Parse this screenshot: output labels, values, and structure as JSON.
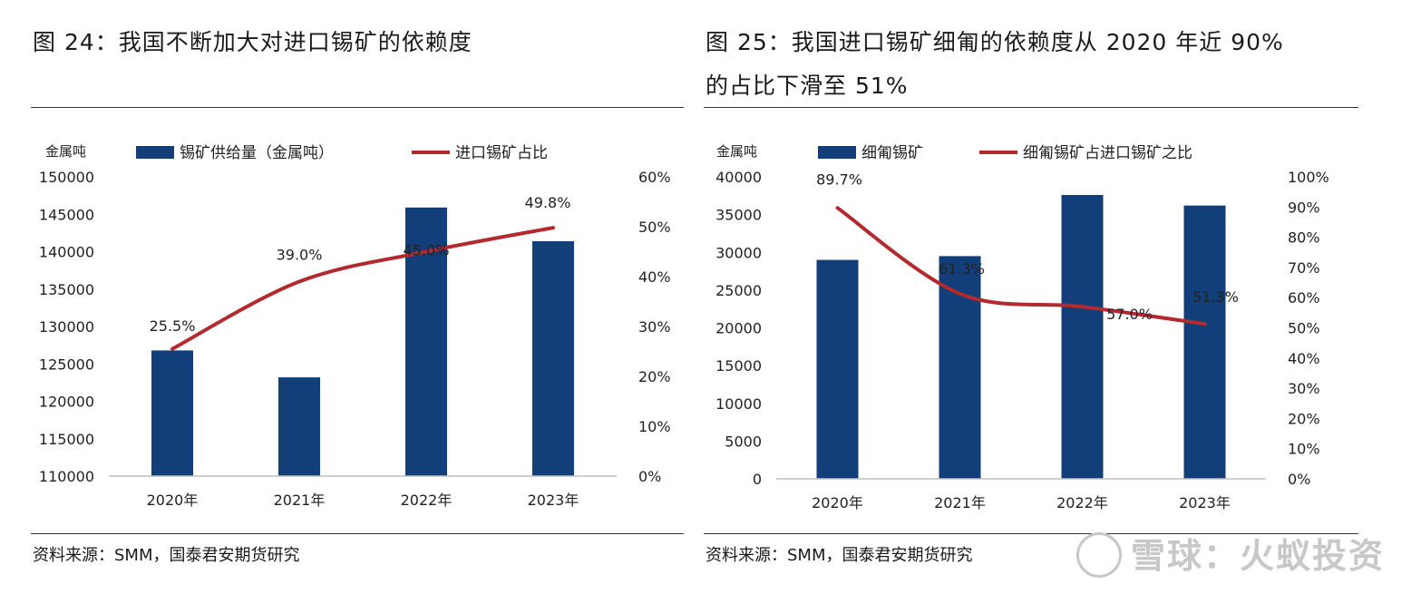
{
  "left": {
    "title": "图 24：我国不断加大对进口锡矿的依赖度",
    "source": "资料来源：SMM，国泰君安期货研究"
  },
  "right": {
    "title_line1": "图 25：我国进口锡矿细匍的依赖度从 2020 年近 90%",
    "title_line2": "的占比下滑至 51%",
    "source": "资料来源：SMM，国泰君安期货研究"
  },
  "watermark": "雪球：火蚁投资",
  "colors": {
    "bar": "#123f7a",
    "line": "#b22a2e"
  },
  "chart_data": [
    {
      "type": "bar",
      "categories": [
        "2020年",
        "2021年",
        "2022年",
        "2023年"
      ],
      "y_unit_label": "金属吨",
      "series": [
        {
          "name": "锡矿供给量（金属吨）",
          "kind": "bar",
          "axis": "left",
          "values": [
            126800,
            123200,
            145900,
            141400
          ]
        },
        {
          "name": "进口锡矿占比",
          "kind": "line",
          "axis": "right",
          "values": [
            25.5,
            39.0,
            45.0,
            49.8
          ],
          "labels": [
            "25.5%",
            "39.0%",
            "45.0%",
            "49.8%"
          ]
        }
      ],
      "ylim": [
        110000,
        150000
      ],
      "yticks": [
        "110000",
        "115000",
        "120000",
        "125000",
        "130000",
        "135000",
        "140000",
        "145000",
        "150000"
      ],
      "y2lim": [
        0,
        60
      ],
      "y2ticks": [
        "0%",
        "10%",
        "20%",
        "30%",
        "40%",
        "50%",
        "60%"
      ],
      "legend": "top",
      "grid": false
    },
    {
      "type": "bar",
      "categories": [
        "2020年",
        "2021年",
        "2022年",
        "2023年"
      ],
      "y_unit_label": "金属吨",
      "series": [
        {
          "name": "细匍锡矿",
          "kind": "bar",
          "axis": "left",
          "values": [
            29000,
            29500,
            37600,
            36200
          ]
        },
        {
          "name": "细匍锡矿占进口锡矿之比",
          "kind": "line",
          "axis": "right",
          "values": [
            89.7,
            61.3,
            57.0,
            51.3
          ],
          "labels": [
            "89.7%",
            "61.3%",
            "57.0%",
            "51.3%"
          ]
        }
      ],
      "ylim": [
        0,
        40000
      ],
      "yticks": [
        "0",
        "5000",
        "10000",
        "15000",
        "20000",
        "25000",
        "30000",
        "35000",
        "40000"
      ],
      "y2lim": [
        0,
        100
      ],
      "y2ticks": [
        "0%",
        "10%",
        "20%",
        "30%",
        "40%",
        "50%",
        "60%",
        "70%",
        "80%",
        "90%",
        "100%"
      ],
      "legend": "top",
      "grid": false
    }
  ]
}
